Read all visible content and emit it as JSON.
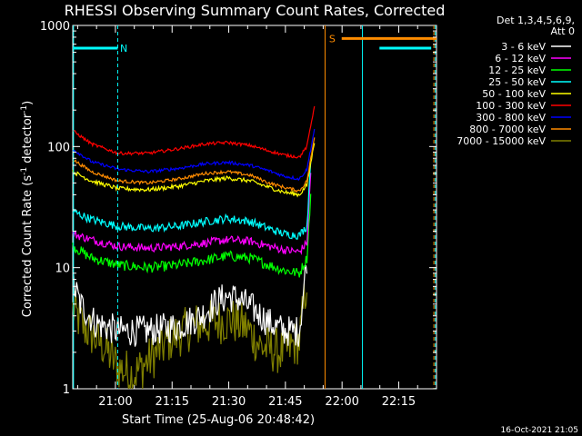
{
  "chart_data": {
    "type": "line",
    "title": "RHESSI Observing Summary Count Rates, Corrected",
    "xlabel": "Start Time (25-Aug-06 20:48:42)",
    "ylabel_main": "Corrected Count Rate (s",
    "ylabel_sup1": "-1",
    "ylabel_mid": " detector",
    "ylabel_sup2": "-1",
    "ylabel_end": ")",
    "y_scale": "log",
    "ylim": [
      1,
      1000
    ],
    "y_ticks": [
      {
        "value": 1,
        "label": "1"
      },
      {
        "value": 10,
        "label": "10"
      },
      {
        "value": 100,
        "label": "100"
      },
      {
        "value": 1000,
        "label": "1000"
      }
    ],
    "x_axis_unit": "minutes after 20:48:42",
    "xlim": [
      0,
      96.3
    ],
    "x_ticks": [
      {
        "value": 11.3,
        "label": "21:00"
      },
      {
        "value": 26.3,
        "label": "21:15"
      },
      {
        "value": 41.3,
        "label": "21:30"
      },
      {
        "value": 56.3,
        "label": "21:45"
      },
      {
        "value": 71.3,
        "label": "22:00"
      },
      {
        "value": 86.3,
        "label": "22:15"
      }
    ],
    "legend_header": [
      "Det 1,3,4,5,6,9,",
      "Att 0"
    ],
    "legend_position": "right",
    "series": [
      {
        "name": "3 - 6 keV",
        "color": "#ffffff",
        "end": 62,
        "noise": 0.3,
        "x": [
          0,
          2,
          6,
          12,
          20,
          28,
          34,
          38,
          41,
          44,
          48,
          52,
          56,
          60,
          62
        ],
        "y": [
          7.5,
          5.0,
          3.5,
          3.0,
          3.0,
          3.3,
          4.0,
          5.2,
          5.8,
          5.5,
          4.5,
          3.5,
          3.0,
          3.0,
          12
        ]
      },
      {
        "name": "6 - 12 keV",
        "color": "#ff00ff",
        "end": 63,
        "noise": 0.08,
        "x": [
          0,
          5,
          12,
          20,
          28,
          35,
          41,
          47,
          52,
          56,
          60,
          62,
          63
        ],
        "y": [
          19,
          17,
          15,
          14.5,
          15,
          16,
          17,
          16.5,
          15,
          14,
          13.5,
          16,
          60
        ]
      },
      {
        "name": "12 - 25 keV",
        "color": "#00ff00",
        "end": 63,
        "noise": 0.1,
        "x": [
          0,
          5,
          12,
          20,
          28,
          35,
          41,
          47,
          52,
          56,
          60,
          62,
          63
        ],
        "y": [
          15,
          12,
          10.5,
          10,
          10.5,
          11.5,
          12.5,
          12,
          10.5,
          9.5,
          9,
          12,
          40
        ]
      },
      {
        "name": "25 - 50 keV",
        "color": "#00ffff",
        "end": 63,
        "noise": 0.08,
        "x": [
          0,
          5,
          12,
          20,
          28,
          35,
          41,
          47,
          52,
          56,
          60,
          62,
          63
        ],
        "y": [
          29,
          25,
          22,
          21,
          22,
          24,
          25.5,
          24,
          21,
          19,
          18.5,
          22,
          80
        ]
      },
      {
        "name": "50 - 100 keV",
        "color": "#ffff00",
        "end": 64,
        "noise": 0.04,
        "x": [
          0,
          5,
          12,
          20,
          28,
          35,
          41,
          47,
          52,
          56,
          60,
          62,
          64
        ],
        "y": [
          62,
          52,
          45,
          44,
          47,
          52,
          55,
          52,
          46,
          42,
          40,
          48,
          110
        ]
      },
      {
        "name": "100 - 300 keV",
        "color": "#ff0000",
        "end": 64,
        "noise": 0.03,
        "x": [
          0,
          5,
          12,
          20,
          28,
          35,
          41,
          47,
          52,
          56,
          60,
          62,
          64
        ],
        "y": [
          135,
          105,
          88,
          88,
          96,
          105,
          108,
          102,
          92,
          85,
          82,
          100,
          220
        ]
      },
      {
        "name": "300 - 800 keV",
        "color": "#0000ff",
        "end": 64,
        "noise": 0.03,
        "x": [
          0,
          5,
          12,
          20,
          28,
          35,
          41,
          47,
          52,
          56,
          60,
          62,
          64
        ],
        "y": [
          95,
          75,
          65,
          62,
          66,
          72,
          74,
          70,
          63,
          57,
          54,
          65,
          140
        ]
      },
      {
        "name": "800 - 7000 keV",
        "color": "#ff8c00",
        "end": 64,
        "noise": 0.03,
        "x": [
          0,
          5,
          12,
          20,
          28,
          35,
          41,
          47,
          52,
          56,
          60,
          62,
          64
        ],
        "y": [
          78,
          62,
          52,
          50,
          54,
          60,
          62,
          58,
          50,
          46,
          43,
          52,
          120
        ]
      },
      {
        "name": "7000 - 15000 keV",
        "color": "#808000",
        "end": 62,
        "noise": 0.45,
        "x": [
          0,
          3,
          8,
          12,
          16,
          20,
          26,
          32,
          38,
          42,
          46,
          50,
          56,
          60,
          62
        ],
        "y": [
          4.5,
          3.2,
          2.3,
          1.5,
          1.3,
          1.7,
          2.6,
          3.3,
          3.6,
          3.7,
          3.2,
          2.2,
          2.0,
          2.5,
          8
        ]
      }
    ],
    "flag_bars": [
      {
        "x1": 0,
        "x2": 11.9,
        "y": 650,
        "color": "#00ffff",
        "label": "N",
        "label_at": 13.5
      },
      {
        "x1": 71.2,
        "x2": 96.3,
        "y": 780,
        "color": "#ff8c00",
        "label": "S",
        "label_at": 68.7
      },
      {
        "x1": 81.2,
        "x2": 94.9,
        "y": 650,
        "color": "#00ffff",
        "label": "",
        "label_at": 0
      }
    ],
    "vlines": [
      {
        "x": 0.2,
        "color": "#00ffff",
        "dash": false
      },
      {
        "x": 11.9,
        "color": "#00ffff",
        "dash": true
      },
      {
        "x": 66.8,
        "color": "#ff8c00",
        "dash": false
      },
      {
        "x": 76.7,
        "color": "#00ffff",
        "dash": false
      },
      {
        "x": 96.0,
        "color": "#00ffff",
        "dash": true
      },
      {
        "x": 95.6,
        "color": "#ff8c00",
        "dash": true
      }
    ]
  },
  "footer": {
    "timestamp": "16-Oct-2021 21:05"
  }
}
